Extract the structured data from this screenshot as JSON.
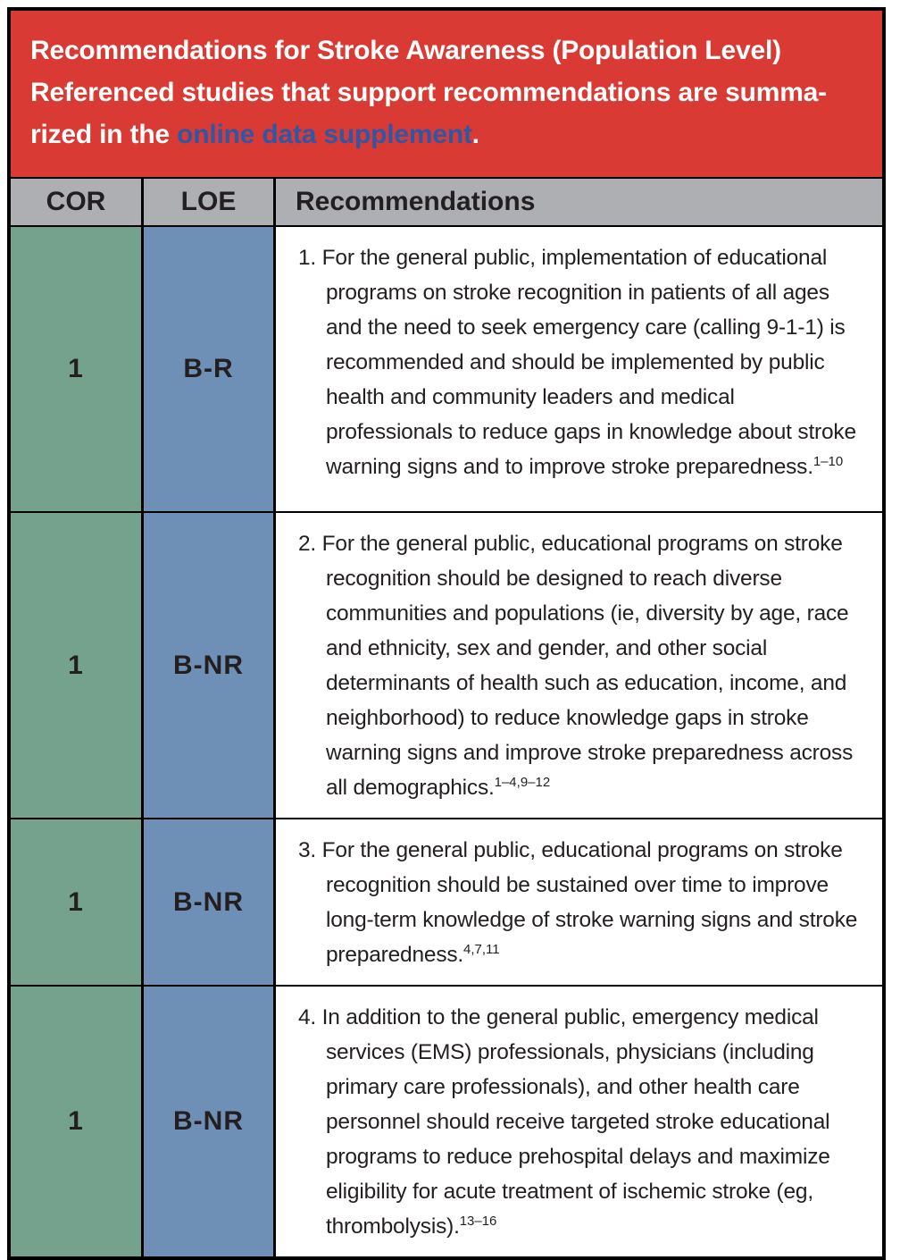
{
  "colors": {
    "banner_bg": "#d93a33",
    "link": "#2d57a7",
    "column_header_bg": "#aeafb2",
    "cor_bg": "#75a28c",
    "loe_bg": "#6e90b6",
    "body_text": "#231f20",
    "border": "#000000"
  },
  "banner": {
    "title_line": "Recommendations for Stroke Awareness (Population Level)",
    "caption_prefix": " Referenced studies that support recommendations are summa­rized in the ",
    "link_text": "online data supplement",
    "caption_suffix": "."
  },
  "column_headers": {
    "cor": "COR",
    "loe": "LOE",
    "recommendations": "Recommendations"
  },
  "rows": [
    {
      "cor": "1",
      "loe": "B-R",
      "text": "1. For the general public, implementation of educa­tional programs on stroke recognition in patients of all ages and the need to seek emergency care (calling 9-1-1) is recommended and should be implemented by public health and community leaders and medical professionals to reduce gaps in knowledge about stroke warning signs and to improve stroke preparedness.",
      "refs": "1–10"
    },
    {
      "cor": "1",
      "loe": "B-NR",
      "text": "2. For the general public, educational programs on stroke recognition should be designed to reach diverse communities and populations (ie, diversity by age, race and ethnicity, sex and gender, and other social determinants of health such as educa­tion, income, and neighborhood) to reduce knowl­edge gaps in stroke warning signs and improve stroke preparedness across all demographics.",
      "refs": "1–4,9–12"
    },
    {
      "cor": "1",
      "loe": "B-NR",
      "text": "3. For the general public, educational programs on stroke recognition should be sustained over time to improve long-term knowledge of stroke warn­ing signs and stroke preparedness.",
      "refs": "4,7,11"
    },
    {
      "cor": "1",
      "loe": "B-NR",
      "text": "4. In addition to the general public, emergency medical services (EMS) professionals, physicians (including primary care professionals), and other health care personnel should receive targeted stroke educational programs to reduce prehospi­tal delays and maximize eligibility for acute treat­ment of ischemic stroke (eg, thrombolysis).",
      "refs": "13–16"
    }
  ]
}
